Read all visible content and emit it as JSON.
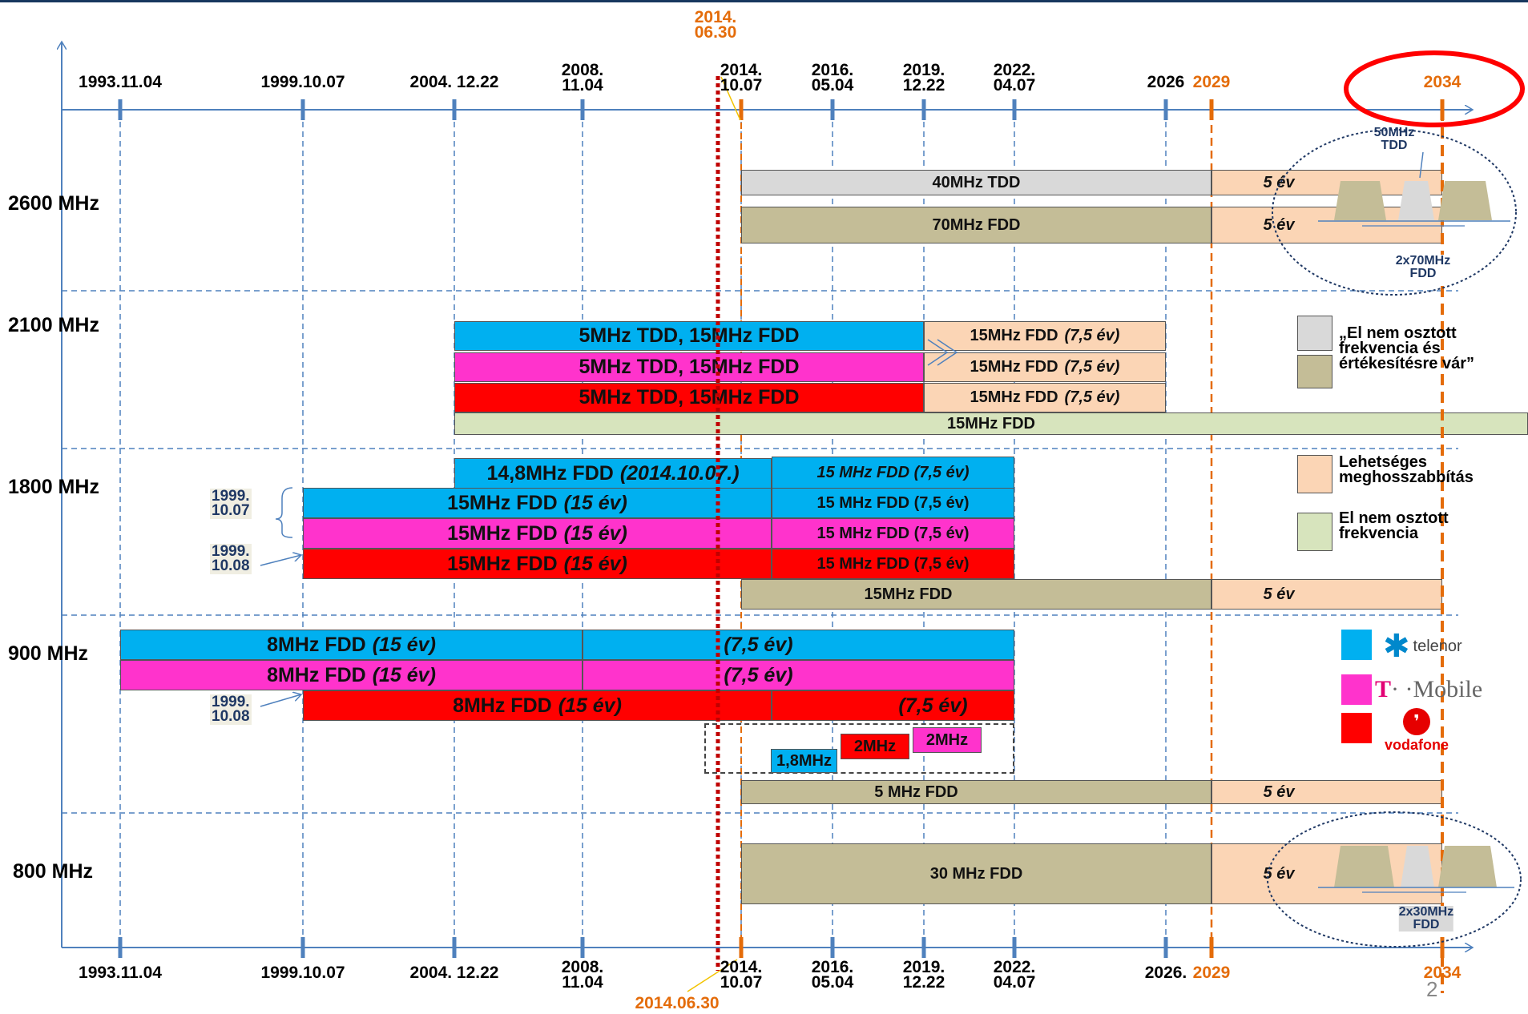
{
  "colors": {
    "telenor": "#00b0f0",
    "tmobile": "#ff33cc",
    "vodafone": "#ff0000",
    "unallocated_pending": "#c4bd97",
    "unallocated_tdd": "#d9d9d9",
    "extension": "#fbd5b5",
    "unallocated": "#d7e4bd",
    "axis": "#4f81bd",
    "deadline": "#c00000",
    "orange": "#e46c0a"
  },
  "top_ticks": [
    {
      "id": "t1993",
      "label": "1993.11.04",
      "year": 1993.84
    },
    {
      "id": "t1999",
      "label": "1999.10.07",
      "year": 1999.77
    },
    {
      "id": "t2004",
      "label": "2004. 12.22",
      "year": 2004.97
    },
    {
      "id": "t2008",
      "label": "2008.\n11.04",
      "year": 2008.84
    },
    {
      "id": "t2014",
      "label": "2014.\n10.07",
      "year": 2014.77
    },
    {
      "id": "t2016",
      "label": "2016.\n05.04",
      "year": 2016.34
    },
    {
      "id": "t2019",
      "label": "2019.\n12.22",
      "year": 2019.97
    },
    {
      "id": "t2022",
      "label": "2022.\n04.07",
      "year": 2022.26
    },
    {
      "id": "t2026",
      "label": "2026",
      "year": 2026.0
    },
    {
      "id": "t2029",
      "label": "2029",
      "year": 2029.0,
      "orange": true
    },
    {
      "id": "t2034",
      "label": "2034",
      "year": 2034.0,
      "orange": true
    }
  ],
  "bottom_ticks": [
    {
      "id": "b1993",
      "label": "1993.11.04",
      "year": 1993.84
    },
    {
      "id": "b1999",
      "label": "1999.10.07",
      "year": 1999.77
    },
    {
      "id": "b2004",
      "label": "2004. 12.22",
      "year": 2004.97
    },
    {
      "id": "b2008",
      "label": "2008.\n11.04",
      "year": 2008.84
    },
    {
      "id": "b2014",
      "label": "2014.\n10.07",
      "year": 2014.77
    },
    {
      "id": "b2016",
      "label": "2016.\n05.04",
      "year": 2016.34
    },
    {
      "id": "b2019",
      "label": "2019.\n12.22",
      "year": 2019.97
    },
    {
      "id": "b2022",
      "label": "2022.\n04.07",
      "year": 2022.26
    },
    {
      "id": "b2026",
      "label": "2026.",
      "year": 2026.0
    },
    {
      "id": "b2029",
      "label": "2029",
      "year": 2029.0,
      "orange": true
    },
    {
      "id": "b2034",
      "label": "2034",
      "year": 2034.0,
      "orange": true
    }
  ],
  "deadline": {
    "label_top": "2014.\n06.30",
    "label_bottom": "2014.06.30",
    "year": 2014.5
  },
  "bands": [
    "2600 MHz",
    "2100 MHz",
    "1800 MHz",
    "900 MHz",
    "800 MHz"
  ],
  "bars": {
    "b2600_tdd": {
      "text": "40MHz TDD",
      "ext": "5 év"
    },
    "b2600_fdd": {
      "text": "70MHz FDD",
      "ext": "5 év"
    },
    "b2100_1": {
      "text": "5MHz TDD, 15MHz FDD",
      "ext": "15MHz FDD",
      "ext_it": "(7,5 év)"
    },
    "b2100_2": {
      "text": "5MHz TDD, 15MHz FDD",
      "ext": "15MHz FDD",
      "ext_it": "(7,5 év)"
    },
    "b2100_3": {
      "text": "5MHz TDD, 15MHz FDD",
      "ext": "15MHz FDD",
      "ext_it": "(7,5 év)"
    },
    "b2100_free": {
      "text": "15MHz FDD"
    },
    "b1800_0": {
      "text": "14,8MHz FDD",
      "it": "(2014.10.07.)",
      "ext": "15 MHz FDD (7,5 év)"
    },
    "b1800_1": {
      "text": "15MHz FDD",
      "it": "(15 év)",
      "ext": "15 MHz FDD (7,5 év)"
    },
    "b1800_2": {
      "text": "15MHz FDD",
      "it": "(15 év)",
      "ext": "15 MHz FDD (7,5 év)"
    },
    "b1800_3": {
      "text": "15MHz FDD",
      "it": "(15 év)",
      "ext": "15 MHz FDD (7,5 év)"
    },
    "b1800_free": {
      "text": "15MHz FDD",
      "ext": "5 év"
    },
    "b900_1": {
      "text": "8MHz FDD",
      "it": "(15 év)",
      "ext": "(7,5 év)"
    },
    "b900_2": {
      "text": "8MHz FDD",
      "it": "(15 év)",
      "ext": "(7,5 év)"
    },
    "b900_3": {
      "text": "8MHz FDD",
      "it": "(15 év)",
      "ext": "(7,5 év)"
    },
    "b900_small_1": {
      "text": "1,8MHz"
    },
    "b900_small_2": {
      "text": "2MHz"
    },
    "b900_small_3": {
      "text": "2MHz"
    },
    "b900_free": {
      "text": "5 MHz FDD",
      "ext": "5 év"
    },
    "b800": {
      "text": "30 MHz FDD",
      "ext": "5 év"
    }
  },
  "notes": {
    "n1800_a": "1999.\n10.07",
    "n1800_b": "1999.\n10.08",
    "n900": "1999.\n10.08"
  },
  "circle_2600": {
    "top": "50MHz\nTDD",
    "bottom": "2x70MHz\nFDD"
  },
  "circle_800": {
    "bottom": "2x30MHz\nFDD"
  },
  "legend": [
    {
      "id": "lg1",
      "text": "„El nem osztott\nfrekvencia és\nértékesítésre vár”"
    },
    {
      "id": "lg2",
      "text": "Lehetséges\nmeghosszabbítás"
    },
    {
      "id": "lg3",
      "text": "El nem osztott\nfrekvencia"
    }
  ],
  "operators": {
    "telenor": "telenor",
    "tmobile": "· ·Mobile",
    "tmobile_t": "T",
    "vodafone": "vodafone"
  },
  "page_number": "2"
}
